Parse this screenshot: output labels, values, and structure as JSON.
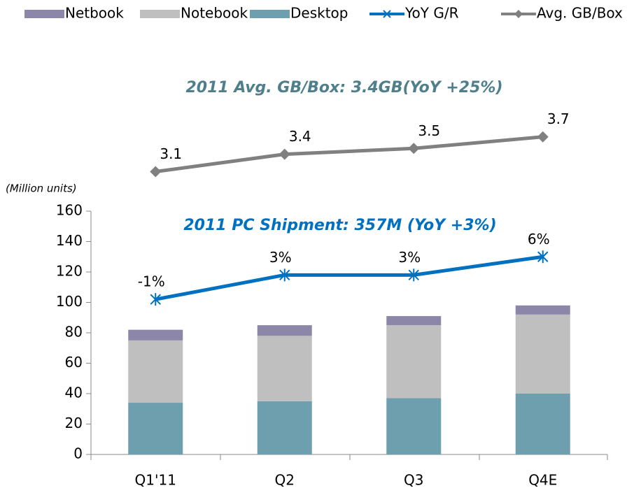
{
  "chart_data": {
    "type": "bar",
    "titles": [
      "2011 Avg. GB/Box: 3.4GB(YoY +25%)",
      "2011 PC Shipment: 357M (YoY +3%)"
    ],
    "ylabel": "(Million units)",
    "categories": [
      "Q1'11",
      "Q2",
      "Q3",
      "Q4E"
    ],
    "ylim": [
      0,
      160
    ],
    "yticks": [
      0,
      20,
      40,
      60,
      80,
      100,
      120,
      140,
      160
    ],
    "series": [
      {
        "name": "Netbook",
        "type": "bar",
        "color": "#8c87a8",
        "values": [
          7,
          7,
          6,
          6
        ]
      },
      {
        "name": "Notebook",
        "type": "bar",
        "color": "#bfbfbf",
        "values": [
          41,
          43,
          48,
          52
        ]
      },
      {
        "name": "Desktop",
        "type": "bar",
        "color": "#6e9fae",
        "values": [
          34,
          35,
          37,
          40
        ]
      },
      {
        "name": "YoY G/R",
        "type": "line",
        "marker": "x",
        "color": "#0070c0",
        "ylim": [
          -26.5,
          13.5
        ],
        "values": [
          -1,
          3,
          3,
          6
        ],
        "value_labels": [
          "-1%",
          "3%",
          "3%",
          "6%"
        ]
      },
      {
        "name": "Avg. GB/Box",
        "type": "line",
        "marker": "diamond",
        "color": "#808080",
        "ylim": [
          -1.77,
          2.42
        ],
        "values": [
          3.1,
          3.4,
          3.5,
          3.7
        ]
      }
    ]
  }
}
